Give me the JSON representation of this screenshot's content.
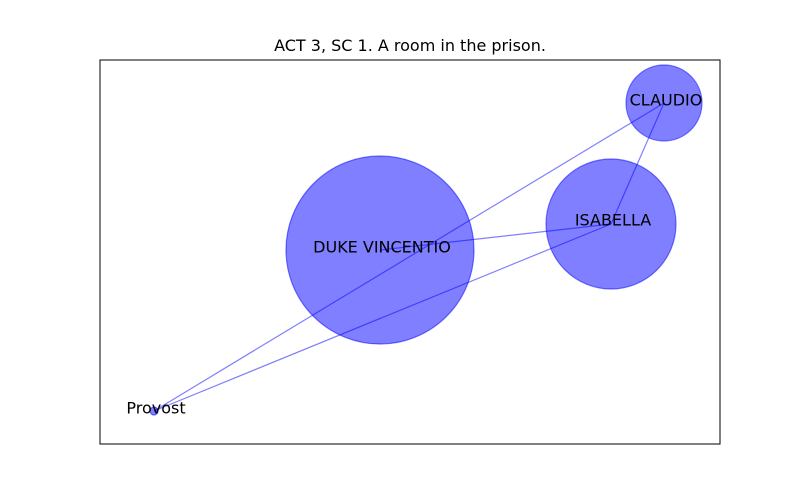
{
  "title": "ACT 3, SC 1. A room in the prison.",
  "colors": {
    "node_fill": "#0000ff",
    "node_fill_opacity": 0.5,
    "edge_color": "#0000ff",
    "edge_opacity": 0.5,
    "frame": "#000000",
    "background": "#ffffff"
  },
  "nodes": [
    {
      "id": "duke",
      "label": "DUKE VINCENTIO"
    },
    {
      "id": "isabella",
      "label": "ISABELLA"
    },
    {
      "id": "claudio",
      "label": "CLAUDIO"
    },
    {
      "id": "provost",
      "label": "Provost"
    }
  ],
  "edges": [
    {
      "from": "duke",
      "to": "isabella"
    },
    {
      "from": "claudio",
      "to": "provost"
    },
    {
      "from": "claudio",
      "to": "isabella"
    },
    {
      "from": "isabella",
      "to": "provost"
    }
  ]
}
